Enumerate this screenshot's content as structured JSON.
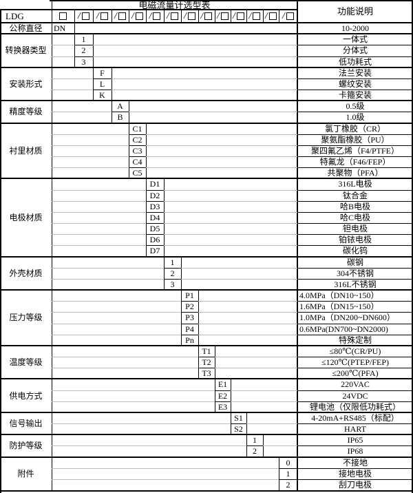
{
  "table": {
    "title": "电磁流量计选型表",
    "function_header": "功能说明",
    "model_prefix": "LDG",
    "checkbox_count": 13,
    "groups": [
      {
        "label": "公称直径",
        "col": 0,
        "rows": [
          {
            "code": "DN",
            "desc": "10-2000"
          }
        ]
      },
      {
        "label": "转换器类型",
        "col": 1,
        "rows": [
          {
            "code": "1",
            "desc": "一体式"
          },
          {
            "code": "2",
            "desc": "分体式"
          },
          {
            "code": "3",
            "desc": "低功耗式"
          }
        ]
      },
      {
        "label": "安装形式",
        "col": 2,
        "rows": [
          {
            "code": "F",
            "desc": "法兰安装"
          },
          {
            "code": "L",
            "desc": "螺纹安装"
          },
          {
            "code": "K",
            "desc": "卡箍安装"
          }
        ]
      },
      {
        "label": "精度等级",
        "col": 3,
        "rows": [
          {
            "code": "A",
            "desc": "0.5级"
          },
          {
            "code": "B",
            "desc": "1.0级"
          }
        ]
      },
      {
        "label": "衬里材质",
        "col": 4,
        "rows": [
          {
            "code": "C1",
            "desc": "氯丁橡胶（CR）"
          },
          {
            "code": "C2",
            "desc": "聚氨酯橡胶（PU）"
          },
          {
            "code": "C3",
            "desc": "聚四氟乙烯（F4/PTFE）"
          },
          {
            "code": "C4",
            "desc": "特氟龙（F46/FEP）"
          },
          {
            "code": "C5",
            "desc": "共聚物（PFA）"
          }
        ]
      },
      {
        "label": "电极材质",
        "col": 5,
        "rows": [
          {
            "code": "D1",
            "desc": "316L电极"
          },
          {
            "code": "D2",
            "desc": "钛合金"
          },
          {
            "code": "D3",
            "desc": "哈B电极"
          },
          {
            "code": "D4",
            "desc": "哈C电极"
          },
          {
            "code": "D5",
            "desc": "钽电极"
          },
          {
            "code": "D6",
            "desc": "铂铱电极"
          },
          {
            "code": "D7",
            "desc": "碳化钨"
          }
        ]
      },
      {
        "label": "外壳材质",
        "col": 6,
        "rows": [
          {
            "code": "1",
            "desc": "碳钢"
          },
          {
            "code": "2",
            "desc": "304不锈钢"
          },
          {
            "code": "3",
            "desc": "316L不锈钢"
          }
        ]
      },
      {
        "label": "压力等级",
        "col": 7,
        "rows": [
          {
            "code": "P1",
            "desc": "4.0MPa（DN10~150）",
            "align": "left"
          },
          {
            "code": "P2",
            "desc": "1.6MPa（DN15~150）",
            "align": "left"
          },
          {
            "code": "P3",
            "desc": "1.0MPa（DN200~DN600）",
            "align": "left"
          },
          {
            "code": "P4",
            "desc": "0.6MPa(DN700~DN2000)",
            "align": "left"
          },
          {
            "code": "Pn",
            "desc": "特殊定制"
          }
        ]
      },
      {
        "label": "温度等级",
        "col": 8,
        "rows": [
          {
            "code": "T1",
            "desc": "≤80℃(CR/PU)"
          },
          {
            "code": "T2",
            "desc": "≤120℃(PTEP/FEP)"
          },
          {
            "code": "T3",
            "desc": "≤200℃(PFA)"
          }
        ]
      },
      {
        "label": "供电方式",
        "col": 9,
        "rows": [
          {
            "code": "E1",
            "desc": "220VAC"
          },
          {
            "code": "E2",
            "desc": "24VDC"
          },
          {
            "code": "E3",
            "desc": "锂电池（仅限低功耗式）"
          }
        ]
      },
      {
        "label": "信号输出",
        "col": 10,
        "rows": [
          {
            "code": "S1",
            "desc": "4-20mA+RS485（标配）"
          },
          {
            "code": "S2",
            "desc": "HART"
          }
        ]
      },
      {
        "label": "防护等级",
        "col": 11,
        "rows": [
          {
            "code": "1",
            "desc": "IP65"
          },
          {
            "code": "2",
            "desc": "IP68"
          }
        ]
      },
      {
        "label": "附件",
        "col": 13,
        "rows": [
          {
            "code": "0",
            "desc": "不接地"
          },
          {
            "code": "1",
            "desc": "接地电极"
          },
          {
            "code": "2",
            "desc": "刮刀电极"
          }
        ]
      }
    ]
  }
}
